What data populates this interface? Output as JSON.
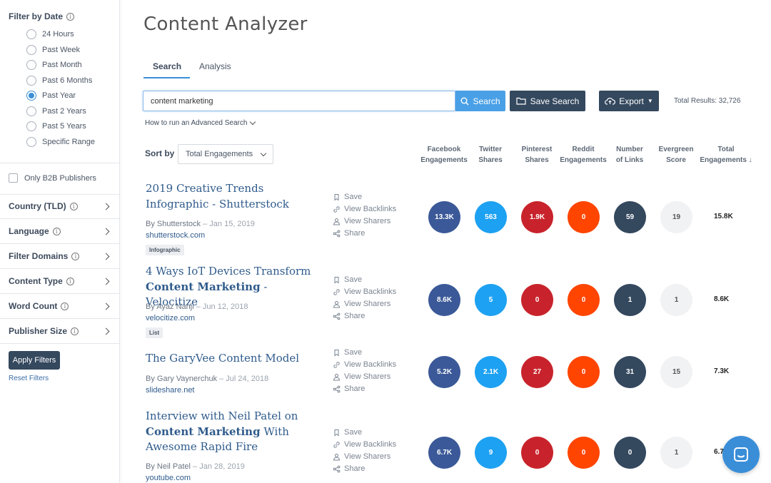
{
  "sidebar": {
    "filter_by_date": {
      "heading": "Filter by Date",
      "options": [
        {
          "label": "24 Hours",
          "checked": false
        },
        {
          "label": "Past Week",
          "checked": false
        },
        {
          "label": "Past Month",
          "checked": false
        },
        {
          "label": "Past 6 Months",
          "checked": false
        },
        {
          "label": "Past Year",
          "checked": true
        },
        {
          "label": "Past 2 Years",
          "checked": false
        },
        {
          "label": "Past 5 Years",
          "checked": false
        },
        {
          "label": "Specific Range",
          "checked": false
        }
      ]
    },
    "b2b_label": "Only B2B Publishers",
    "accordions": [
      {
        "label": "Country (TLD)"
      },
      {
        "label": "Language"
      },
      {
        "label": "Filter Domains"
      },
      {
        "label": "Content Type"
      },
      {
        "label": "Word Count"
      },
      {
        "label": "Publisher Size"
      }
    ],
    "apply_label": "Apply Filters",
    "reset_label": "Reset Filters"
  },
  "page_title": "Content Analyzer",
  "tabs": {
    "search": "Search",
    "analysis": "Analysis"
  },
  "search": {
    "query": "content marketing",
    "search_label": "Search",
    "save_search_label": "Save Search",
    "export_label": "Export",
    "total_results": "Total Results: 32,726",
    "advanced_link": "How to run an Advanced Search"
  },
  "sort": {
    "label": "Sort by",
    "value": "Total Engagements"
  },
  "columns": [
    {
      "line1": "Facebook",
      "line2": "Engagements"
    },
    {
      "line1": "Twitter",
      "line2": "Shares"
    },
    {
      "line1": "Pinterest",
      "line2": "Shares"
    },
    {
      "line1": "Reddit",
      "line2": "Engagements"
    },
    {
      "line1": "Number",
      "line2": "of Links"
    },
    {
      "line1": "Evergreen",
      "line2": "Score"
    },
    {
      "line1": "Total",
      "line2": "Engagements ↓"
    }
  ],
  "actions": {
    "save": "Save",
    "backlinks": "View Backlinks",
    "sharers": "View Sharers",
    "share": "Share"
  },
  "results": [
    {
      "title_parts": [
        "2019 Creative Trends Infographic - Shutterstock"
      ],
      "title_bold": "",
      "title_after": "",
      "author": "By Shutterstock",
      "date": "– Jan 15, 2019",
      "domain": "shutterstock.com",
      "tag": "Infographic",
      "facebook": "13.3K",
      "twitter": "563",
      "pinterest": "1.9K",
      "reddit": "0",
      "links": "59",
      "evergreen": "19",
      "total": "15.8K"
    },
    {
      "title_parts": [
        "4 Ways IoT Devices Transform"
      ],
      "title_bold": "Content Marketing",
      "title_after": " - Velocitize",
      "author": "By Ayaz Nanji",
      "date": "– Jun 12, 2018",
      "domain": "velocitize.com",
      "tag": "List",
      "facebook": "8.6K",
      "twitter": "5",
      "pinterest": "0",
      "reddit": "0",
      "links": "1",
      "evergreen": "1",
      "total": "8.6K"
    },
    {
      "title_parts": [
        "The GaryVee Content Model"
      ],
      "title_bold": "",
      "title_after": "",
      "author": "By Gary Vaynerchuk",
      "date": "– Jul 24, 2018",
      "domain": "slideshare.net",
      "tag": "",
      "facebook": "5.2K",
      "twitter": "2.1K",
      "pinterest": "27",
      "reddit": "0",
      "links": "31",
      "evergreen": "15",
      "total": "7.3K"
    },
    {
      "title_parts": [
        "Interview with Neil Patel on"
      ],
      "title_bold": "Content Marketing",
      "title_after": " With Awesome Rapid Fire",
      "author": "By Neil Patel",
      "date": "– Jan 28, 2019",
      "domain": "youtube.com",
      "tag": "",
      "facebook": "6.7K",
      "twitter": "9",
      "pinterest": "0",
      "reddit": "0",
      "links": "0",
      "evergreen": "1",
      "total": "6.7K"
    }
  ],
  "icons": {
    "chat": "chat-icon",
    "search": "search-icon",
    "folder": "folder-icon",
    "cloud": "cloud-upload-icon"
  }
}
